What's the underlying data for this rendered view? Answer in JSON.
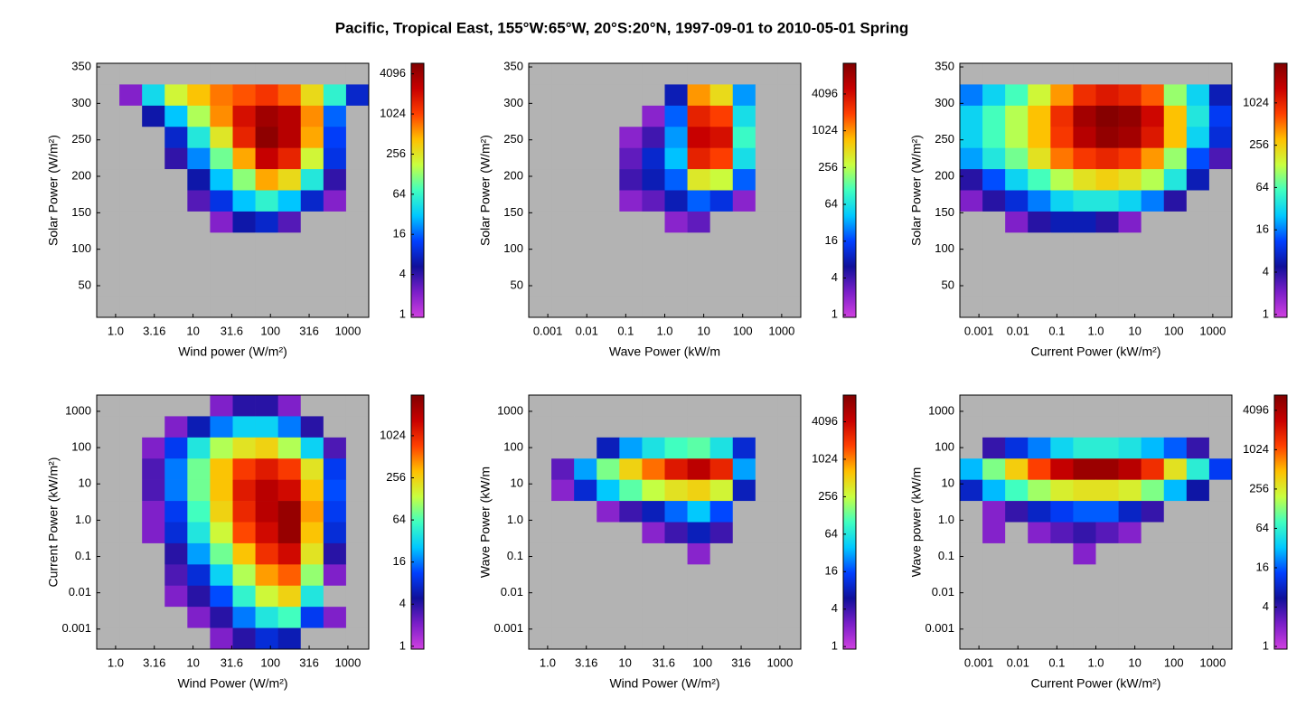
{
  "title": "Pacific, Tropical East, 155°W:65°W,  20°S:20°N, 1997-09-01 to 2010-05-01 Spring",
  "chart_data": [
    {
      "type": "heatmap",
      "xlabel": "Wind power (W/m²)",
      "ylabel": "Solar Power (W/m²)",
      "xlog": true,
      "ylog": false,
      "xlim": [
        0.57,
        1860
      ],
      "ylim": [
        6.6,
        355
      ],
      "xticks": [
        {
          "value": 1,
          "label": "1.0"
        },
        3.16,
        10,
        31.6,
        100,
        316,
        1000
      ],
      "yticks": [
        50,
        100,
        150,
        200,
        250,
        300,
        350
      ],
      "clim": [
        0.91,
        5900
      ],
      "cticks": [
        1,
        4,
        16,
        64,
        256,
        1024,
        4096
      ],
      "colormap": [
        "#d040e0",
        "#7a1ec8",
        "#10109a",
        "#0040ff",
        "#00c8ff",
        "#40ffc0",
        "#c8ff40",
        "#ffc000",
        "#ff4000",
        "#c80000",
        "#800000"
      ],
      "z": [
        [
          0,
          0,
          0,
          0,
          0,
          0,
          0,
          0,
          0,
          0,
          0,
          0
        ],
        [
          0,
          2,
          40,
          200,
          400,
          700,
          900,
          1200,
          800,
          300,
          60,
          8
        ],
        [
          0,
          0,
          6,
          30,
          150,
          600,
          2000,
          4000,
          3000,
          600,
          16,
          0
        ],
        [
          0,
          0,
          0,
          8,
          50,
          250,
          1500,
          5000,
          3000,
          500,
          12,
          0
        ],
        [
          0,
          0,
          0,
          4,
          20,
          100,
          500,
          2500,
          1500,
          200,
          10,
          0
        ],
        [
          0,
          0,
          0,
          0,
          6,
          30,
          120,
          500,
          300,
          50,
          4,
          0
        ],
        [
          0,
          0,
          0,
          0,
          3,
          10,
          30,
          60,
          30,
          8,
          2,
          0
        ],
        [
          0,
          0,
          0,
          0,
          0,
          2,
          6,
          8,
          3,
          0,
          0,
          0
        ],
        [
          0,
          0,
          0,
          0,
          0,
          0,
          0,
          0,
          0,
          0,
          0,
          0
        ],
        [
          0,
          0,
          0,
          0,
          0,
          0,
          0,
          0,
          0,
          0,
          0,
          0
        ],
        [
          0,
          0,
          0,
          0,
          0,
          0,
          0,
          0,
          0,
          0,
          0,
          0
        ],
        [
          0,
          0,
          0,
          0,
          0,
          0,
          0,
          0,
          0,
          0,
          0,
          0
        ]
      ]
    },
    {
      "type": "heatmap",
      "xlabel": "Wave Power (kW/m",
      "ylabel": "Solar Power (W/m²)",
      "xlog": true,
      "ylog": false,
      "xlim": [
        0.000324,
        3090
      ],
      "ylim": [
        6.6,
        355
      ],
      "xticks": [
        0.001,
        0.01,
        0.1,
        {
          "value": 1,
          "label": "1.0"
        },
        10,
        100,
        1000
      ],
      "yticks": [
        50,
        100,
        150,
        200,
        250,
        300,
        350
      ],
      "clim": [
        0.91,
        13000
      ],
      "cticks": [
        1,
        4,
        16,
        64,
        256,
        1024,
        4096
      ],
      "colormap": [
        "#d040e0",
        "#7a1ec8",
        "#10109a",
        "#0040ff",
        "#00c8ff",
        "#40ffc0",
        "#c8ff40",
        "#ffc000",
        "#ff4000",
        "#c80000",
        "#800000"
      ],
      "z": [
        [
          0,
          0,
          0,
          0,
          0,
          0,
          0,
          0,
          0,
          0,
          0,
          0
        ],
        [
          0,
          0,
          0,
          0,
          0,
          0,
          8,
          1000,
          500,
          30,
          0,
          0
        ],
        [
          0,
          0,
          0,
          0,
          0,
          2,
          20,
          3000,
          2000,
          60,
          0,
          0
        ],
        [
          0,
          0,
          0,
          0,
          2,
          4,
          30,
          5000,
          4000,
          100,
          0,
          0
        ],
        [
          0,
          0,
          0,
          0,
          3,
          10,
          40,
          3000,
          2000,
          60,
          0,
          0
        ],
        [
          0,
          0,
          0,
          0,
          4,
          8,
          20,
          400,
          300,
          20,
          0,
          0
        ],
        [
          0,
          0,
          0,
          0,
          2,
          3,
          8,
          20,
          12,
          2,
          0,
          0
        ],
        [
          0,
          0,
          0,
          0,
          0,
          0,
          2,
          3,
          0,
          0,
          0,
          0
        ],
        [
          0,
          0,
          0,
          0,
          0,
          0,
          0,
          0,
          0,
          0,
          0,
          0
        ],
        [
          0,
          0,
          0,
          0,
          0,
          0,
          0,
          0,
          0,
          0,
          0,
          0
        ],
        [
          0,
          0,
          0,
          0,
          0,
          0,
          0,
          0,
          0,
          0,
          0,
          0
        ],
        [
          0,
          0,
          0,
          0,
          0,
          0,
          0,
          0,
          0,
          0,
          0,
          0
        ]
      ]
    },
    {
      "type": "heatmap",
      "xlabel": "Current Power (kW/m²)",
      "ylabel": "Solar Power (W/m²)",
      "xlog": true,
      "ylog": false,
      "xlim": [
        0.000324,
        3090
      ],
      "ylim": [
        6.6,
        355
      ],
      "xticks": [
        0.001,
        0.01,
        0.1,
        {
          "value": 1,
          "label": "1.0"
        },
        10,
        100,
        1000
      ],
      "yticks": [
        50,
        100,
        150,
        200,
        250,
        300,
        350
      ],
      "clim": [
        0.91,
        3750
      ],
      "cticks": [
        1,
        4,
        16,
        64,
        256,
        1024
      ],
      "colormap": [
        "#d040e0",
        "#7a1ec8",
        "#10109a",
        "#0040ff",
        "#00c8ff",
        "#40ffc0",
        "#c8ff40",
        "#ffc000",
        "#ff4000",
        "#c80000",
        "#800000"
      ],
      "z": [
        [
          0,
          0,
          0,
          0,
          0,
          0,
          0,
          0,
          0,
          0,
          0,
          0
        ],
        [
          16,
          30,
          60,
          150,
          400,
          900,
          1200,
          1000,
          600,
          100,
          30,
          6
        ],
        [
          30,
          60,
          120,
          300,
          900,
          2500,
          3500,
          3000,
          1500,
          300,
          40,
          10
        ],
        [
          30,
          60,
          120,
          300,
          800,
          2000,
          3000,
          2500,
          1200,
          300,
          30,
          8
        ],
        [
          20,
          40,
          80,
          200,
          500,
          800,
          1000,
          800,
          400,
          100,
          12,
          3
        ],
        [
          4,
          12,
          30,
          60,
          120,
          200,
          250,
          200,
          120,
          40,
          6,
          0
        ],
        [
          2,
          4,
          8,
          16,
          30,
          40,
          40,
          30,
          16,
          4,
          0,
          0
        ],
        [
          0,
          0,
          2,
          4,
          6,
          6,
          4,
          2,
          0,
          0,
          0,
          0
        ],
        [
          0,
          0,
          0,
          0,
          0,
          0,
          0,
          0,
          0,
          0,
          0,
          0
        ],
        [
          0,
          0,
          0,
          0,
          0,
          0,
          0,
          0,
          0,
          0,
          0,
          0
        ],
        [
          0,
          0,
          0,
          0,
          0,
          0,
          0,
          0,
          0,
          0,
          0,
          0
        ],
        [
          0,
          0,
          0,
          0,
          0,
          0,
          0,
          0,
          0,
          0,
          0,
          0
        ]
      ]
    },
    {
      "type": "heatmap",
      "xlabel": "Wind Power (W/m²)",
      "ylabel": "Current Power (kW/m²)",
      "xlog": true,
      "ylog": true,
      "xlim": [
        0.57,
        1860
      ],
      "ylim": [
        0.00028,
        2800
      ],
      "xticks": [
        {
          "value": 1,
          "label": "1.0"
        },
        3.16,
        10,
        31.6,
        100,
        316,
        1000
      ],
      "yticks": [
        0.001,
        0.01,
        0.1,
        {
          "value": 1,
          "label": "1.0"
        },
        10,
        100,
        1000
      ],
      "clim": [
        0.91,
        3900
      ],
      "cticks": [
        1,
        4,
        16,
        64,
        256,
        1024
      ],
      "colormap": [
        "#d040e0",
        "#7a1ec8",
        "#10109a",
        "#0040ff",
        "#00c8ff",
        "#40ffc0",
        "#c8ff40",
        "#ffc000",
        "#ff4000",
        "#c80000",
        "#800000"
      ],
      "z": [
        [
          0,
          0,
          0,
          0,
          0,
          2,
          4,
          4,
          2,
          0,
          0,
          0
        ],
        [
          0,
          0,
          0,
          2,
          6,
          16,
          30,
          30,
          16,
          4,
          0,
          0
        ],
        [
          0,
          0,
          2,
          10,
          40,
          120,
          200,
          250,
          120,
          30,
          3,
          0
        ],
        [
          0,
          0,
          3,
          16,
          80,
          300,
          800,
          1200,
          800,
          200,
          10,
          0
        ],
        [
          0,
          0,
          3,
          16,
          80,
          300,
          1200,
          2000,
          1500,
          300,
          12,
          0
        ],
        [
          0,
          0,
          2,
          10,
          60,
          250,
          1000,
          2000,
          3000,
          400,
          10,
          0
        ],
        [
          0,
          0,
          2,
          8,
          40,
          150,
          700,
          1500,
          3000,
          300,
          8,
          0
        ],
        [
          0,
          0,
          0,
          4,
          20,
          80,
          300,
          900,
          1500,
          200,
          4,
          0
        ],
        [
          0,
          0,
          0,
          3,
          8,
          30,
          120,
          400,
          600,
          100,
          2,
          0
        ],
        [
          0,
          0,
          0,
          2,
          4,
          12,
          50,
          150,
          250,
          40,
          0,
          0
        ],
        [
          0,
          0,
          0,
          0,
          2,
          4,
          16,
          40,
          60,
          10,
          2,
          0
        ],
        [
          0,
          0,
          0,
          0,
          0,
          2,
          4,
          8,
          6,
          0,
          0,
          0
        ]
      ]
    },
    {
      "type": "heatmap",
      "xlabel": "Wind Power (W/m²)",
      "ylabel": "Wave Power (kW/m",
      "xlog": true,
      "ylog": true,
      "xlim": [
        0.57,
        1860
      ],
      "ylim": [
        0.00028,
        2800
      ],
      "xticks": [
        {
          "value": 1,
          "label": "1.0"
        },
        3.16,
        10,
        31.6,
        100,
        316,
        1000
      ],
      "yticks": [
        0.001,
        0.01,
        0.1,
        {
          "value": 1,
          "label": "1.0"
        },
        10,
        100,
        1000
      ],
      "clim": [
        0.91,
        11000
      ],
      "cticks": [
        1,
        4,
        16,
        64,
        256,
        1024,
        4096
      ],
      "colormap": [
        "#d040e0",
        "#7a1ec8",
        "#10109a",
        "#0040ff",
        "#00c8ff",
        "#40ffc0",
        "#c8ff40",
        "#ffc000",
        "#ff4000",
        "#c80000",
        "#800000"
      ],
      "z": [
        [
          0,
          0,
          0,
          0,
          0,
          0,
          0,
          0,
          0,
          0,
          0,
          0
        ],
        [
          0,
          0,
          0,
          0,
          0,
          0,
          0,
          0,
          0,
          0,
          0,
          0
        ],
        [
          0,
          0,
          0,
          8,
          30,
          60,
          100,
          120,
          60,
          10,
          0,
          0
        ],
        [
          0,
          3,
          30,
          150,
          500,
          1200,
          3000,
          5000,
          2500,
          30,
          0,
          0
        ],
        [
          0,
          2,
          10,
          40,
          120,
          250,
          400,
          500,
          300,
          8,
          0,
          0
        ],
        [
          0,
          0,
          0,
          2,
          4,
          8,
          20,
          40,
          16,
          0,
          0,
          0
        ],
        [
          0,
          0,
          0,
          0,
          0,
          2,
          4,
          8,
          4,
          0,
          0,
          0
        ],
        [
          0,
          0,
          0,
          0,
          0,
          0,
          0,
          2,
          0,
          0,
          0,
          0
        ],
        [
          0,
          0,
          0,
          0,
          0,
          0,
          0,
          0,
          0,
          0,
          0,
          0
        ],
        [
          0,
          0,
          0,
          0,
          0,
          0,
          0,
          0,
          0,
          0,
          0,
          0
        ],
        [
          0,
          0,
          0,
          0,
          0,
          0,
          0,
          0,
          0,
          0,
          0,
          0
        ],
        [
          0,
          0,
          0,
          0,
          0,
          0,
          0,
          0,
          0,
          0,
          0,
          0
        ]
      ]
    },
    {
      "type": "heatmap",
      "xlabel": "Current Power (kW/m²)",
      "ylabel": "Wave power (kW/m",
      "xlog": true,
      "ylog": true,
      "xlim": [
        0.000324,
        3090
      ],
      "ylim": [
        0.00028,
        2800
      ],
      "xticks": [
        0.001,
        0.01,
        0.1,
        {
          "value": 1,
          "label": "1.0"
        },
        10,
        100,
        1000
      ],
      "yticks": [
        0.001,
        0.01,
        0.1,
        {
          "value": 1,
          "label": "1.0"
        },
        10,
        100,
        1000
      ],
      "clim": [
        0.91,
        7000
      ],
      "cticks": [
        1,
        4,
        16,
        64,
        256,
        1024,
        4096
      ],
      "colormap": [
        "#d040e0",
        "#7a1ec8",
        "#10109a",
        "#0040ff",
        "#00c8ff",
        "#40ffc0",
        "#c8ff40",
        "#ffc000",
        "#ff4000",
        "#c80000",
        "#800000"
      ],
      "z": [
        [
          0,
          0,
          0,
          0,
          0,
          0,
          0,
          0,
          0,
          0,
          0,
          0
        ],
        [
          0,
          0,
          0,
          0,
          0,
          0,
          0,
          0,
          0,
          0,
          0,
          0
        ],
        [
          0,
          4,
          10,
          20,
          40,
          60,
          60,
          50,
          30,
          16,
          4,
          0
        ],
        [
          30,
          120,
          400,
          1200,
          3000,
          5000,
          5000,
          3500,
          1500,
          300,
          60,
          12
        ],
        [
          8,
          30,
          80,
          150,
          250,
          300,
          300,
          250,
          120,
          30,
          6,
          0
        ],
        [
          0,
          2,
          4,
          8,
          12,
          16,
          16,
          8,
          4,
          0,
          0,
          0
        ],
        [
          0,
          2,
          0,
          2,
          3,
          4,
          3,
          2,
          0,
          0,
          0,
          0
        ],
        [
          0,
          0,
          0,
          0,
          0,
          2,
          0,
          0,
          0,
          0,
          0,
          0
        ],
        [
          0,
          0,
          0,
          0,
          0,
          0,
          0,
          0,
          0,
          0,
          0,
          0
        ],
        [
          0,
          0,
          0,
          0,
          0,
          0,
          0,
          0,
          0,
          0,
          0,
          0
        ],
        [
          0,
          0,
          0,
          0,
          0,
          0,
          0,
          0,
          0,
          0,
          0,
          0
        ],
        [
          0,
          0,
          0,
          0,
          0,
          0,
          0,
          0,
          0,
          0,
          0,
          0
        ]
      ]
    }
  ]
}
